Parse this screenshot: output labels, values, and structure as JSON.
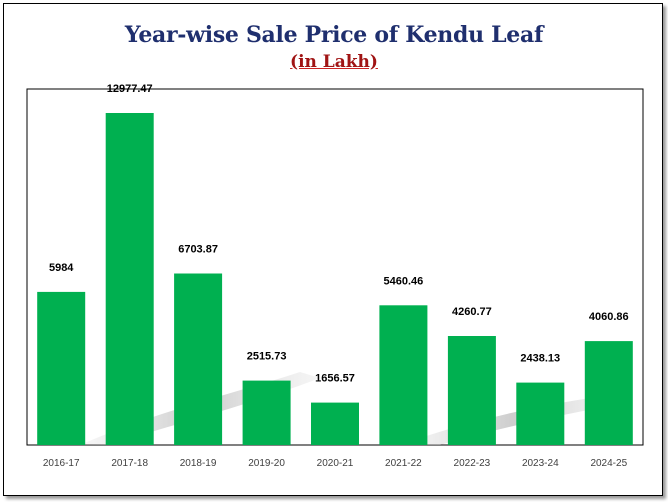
{
  "chart_data": {
    "type": "bar",
    "title": "Year-wise Sale Price of Kendu Leaf",
    "subtitle": "(in Lakh)",
    "xlabel": "",
    "ylabel": "",
    "categories": [
      "2016-17",
      "2017-18",
      "2018-19",
      "2019-20",
      "2020-21",
      "2021-22",
      "2022-23",
      "2023-24",
      "2024-25"
    ],
    "values": [
      5984,
      12977.47,
      6703.87,
      2515.73,
      1656.57,
      5460.46,
      4260.77,
      2438.13,
      4060.86
    ],
    "value_labels": [
      "5984",
      "12977.47",
      "6703.87",
      "2515.73",
      "1656.57",
      "5460.46",
      "4260.77",
      "2438.13",
      "4060.86"
    ],
    "ylim": [
      0,
      14000
    ],
    "grid": false,
    "bar_color": "#00b050"
  }
}
